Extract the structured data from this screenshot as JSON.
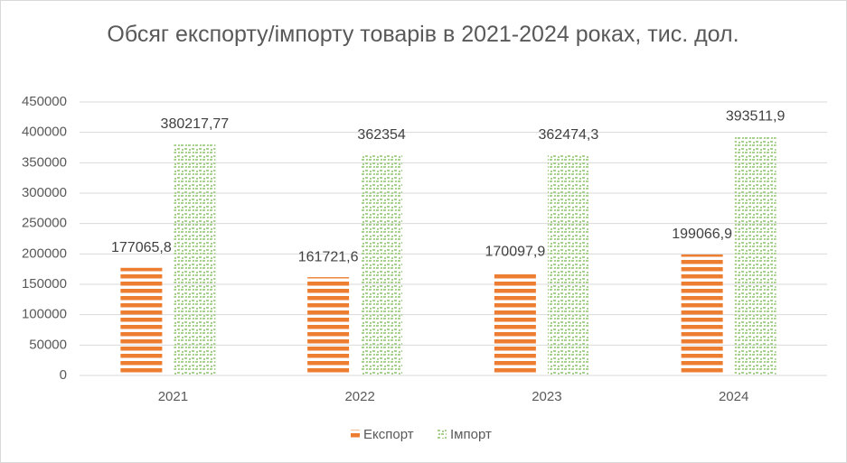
{
  "chart_data": {
    "type": "bar",
    "title": "Обсяг експорту/імпорту товарів в 2021-2024 роках, тис. дол.",
    "categories": [
      "2021",
      "2022",
      "2023",
      "2024"
    ],
    "series": [
      {
        "name": "Експорт",
        "color": "#ed7d31",
        "pattern": "horizontal-stripes",
        "values": [
          177065.8,
          161721.6,
          170097.9,
          199066.9
        ],
        "value_labels": [
          "177065,8",
          "161721,6",
          "170097,9",
          "199066,9"
        ]
      },
      {
        "name": "Імпорт",
        "color": "#a9d18e",
        "pattern": "dots",
        "values": [
          380217.77,
          362354,
          362474.3,
          393511.9
        ],
        "value_labels": [
          "380217,77",
          "362354",
          "362474,3",
          "393511,9"
        ]
      }
    ],
    "ylim": [
      0,
      450000
    ],
    "yticks": [
      0,
      50000,
      100000,
      150000,
      200000,
      250000,
      300000,
      350000,
      400000,
      450000
    ],
    "grid": true,
    "legend": "bottom"
  }
}
